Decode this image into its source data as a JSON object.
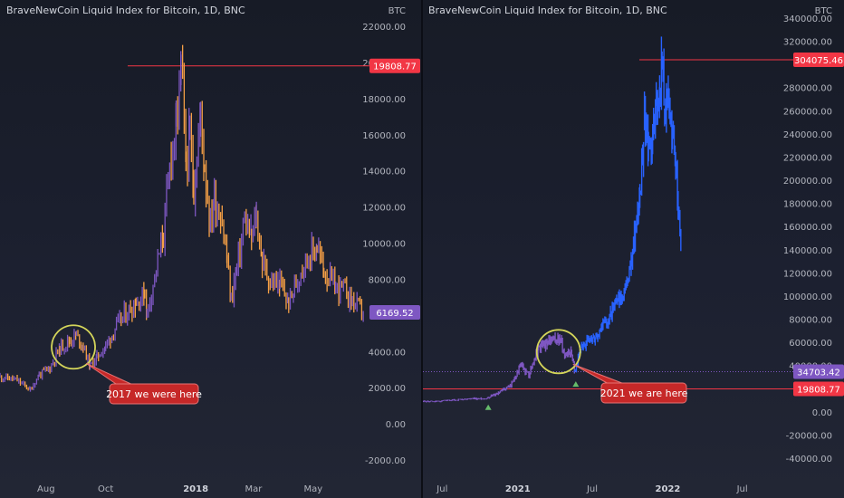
{
  "chart_data": [
    {
      "type": "candlestick",
      "title": "BraveNewCoin Liquid Index for Bitcoin, 1D, BNC",
      "ylabel": "BTC",
      "ylim": [
        -2000,
        22000
      ],
      "yticks": [
        22000,
        20000,
        18000,
        16000,
        14000,
        12000,
        10000,
        8000,
        6000,
        4000,
        2000,
        0,
        -2000
      ],
      "ytick_labels": [
        "22000.00",
        "20000.00",
        "18000.00",
        "16000.00",
        "14000.00",
        "12000.00",
        "10000.00",
        "8000.00",
        "",
        "4000.00",
        "2000.00",
        "0.00",
        "-2000.00"
      ],
      "xlim": [
        "2017-06-15",
        "2018-06-22"
      ],
      "xticks": [
        {
          "date": "2017-08-01",
          "label": "Aug"
        },
        {
          "date": "2017-10-01",
          "label": "Oct"
        },
        {
          "date": "2018-01-01",
          "label": "2018"
        },
        {
          "date": "2018-03-01",
          "label": "Mar"
        },
        {
          "date": "2018-05-01",
          "label": "May"
        }
      ],
      "series": [
        {
          "points": [
            [
              "2017-06-15",
              2600
            ],
            [
              "2017-07-01",
              2450
            ],
            [
              "2017-07-16",
              1900
            ],
            [
              "2017-07-25",
              2700
            ],
            [
              "2017-08-05",
              3100
            ],
            [
              "2017-08-15",
              4200
            ],
            [
              "2017-08-25",
              4600
            ],
            [
              "2017-09-01",
              4900
            ],
            [
              "2017-09-08",
              4300
            ],
            [
              "2017-09-15",
              3200
            ],
            [
              "2017-09-22",
              3700
            ],
            [
              "2017-10-01",
              4300
            ],
            [
              "2017-10-12",
              5400
            ],
            [
              "2017-10-20",
              6000
            ],
            [
              "2017-11-01",
              6700
            ],
            [
              "2017-11-10",
              7200
            ],
            [
              "2017-11-12",
              6100
            ],
            [
              "2017-11-20",
              8100
            ],
            [
              "2017-11-29",
              10500
            ],
            [
              "2017-12-07",
              15000
            ],
            [
              "2017-12-12",
              16500
            ],
            [
              "2017-12-17",
              19800
            ],
            [
              "2017-12-22",
              14500
            ],
            [
              "2017-12-26",
              15800
            ],
            [
              "2017-12-30",
              13200
            ],
            [
              "2018-01-06",
              17000
            ],
            [
              "2018-01-10",
              14300
            ],
            [
              "2018-01-16",
              11000
            ],
            [
              "2018-01-20",
              12500
            ],
            [
              "2018-01-28",
              11300
            ],
            [
              "2018-02-02",
              9000
            ],
            [
              "2018-02-06",
              6900
            ],
            [
              "2018-02-12",
              8600
            ],
            [
              "2018-02-20",
              11200
            ],
            [
              "2018-02-27",
              10300
            ],
            [
              "2018-03-04",
              11400
            ],
            [
              "2018-03-10",
              9000
            ],
            [
              "2018-03-18",
              7800
            ],
            [
              "2018-03-28",
              7700
            ],
            [
              "2018-04-06",
              6700
            ],
            [
              "2018-04-12",
              7500
            ],
            [
              "2018-04-20",
              8800
            ],
            [
              "2018-04-28",
              9300
            ],
            [
              "2018-05-05",
              9800
            ],
            [
              "2018-05-12",
              8500
            ],
            [
              "2018-05-24",
              7500
            ],
            [
              "2018-06-01",
              7500
            ],
            [
              "2018-06-10",
              6800
            ],
            [
              "2018-06-22",
              6170
            ]
          ]
        }
      ],
      "horizontal_lines": [
        {
          "value": 19808.77,
          "label": "19808.77",
          "color": "#f23645"
        }
      ],
      "price_labels": [
        {
          "value": 6169.52,
          "label": "6169.52",
          "color": "#7e57c2"
        }
      ],
      "annotations": [
        {
          "text": "2017 we were here",
          "circle_at": [
            "2017-08-29",
            4250
          ]
        }
      ],
      "colors": {
        "up": "#7e57c2",
        "down": "#f6a046"
      }
    },
    {
      "type": "candlestick",
      "title": "BraveNewCoin Liquid Index for Bitcoin, 1D, BNC",
      "ylabel": "BTC",
      "ylim": [
        -40000,
        340000
      ],
      "yticks": [
        340000,
        320000,
        300000,
        280000,
        260000,
        240000,
        220000,
        200000,
        180000,
        160000,
        140000,
        120000,
        100000,
        80000,
        60000,
        40000,
        20000,
        0,
        -20000,
        -40000
      ],
      "ytick_labels": [
        "340000.00",
        "320000.00",
        "",
        "280000.00",
        "260000.00",
        "240000.00",
        "220000.00",
        "200000.00",
        "180000.00",
        "160000.00",
        "140000.00",
        "120000.00",
        "100000.00",
        "80000.00",
        "60000.00",
        "40000.00",
        "",
        "0.00",
        "-20000.00",
        "-40000.00"
      ],
      "xlim": [
        "2020-05-15",
        "2022-10-20"
      ],
      "xticks": [
        {
          "date": "2020-07-01",
          "label": "Jul"
        },
        {
          "date": "2021-01-01",
          "label": "2021"
        },
        {
          "date": "2021-07-01",
          "label": "Jul"
        },
        {
          "date": "2022-01-01",
          "label": "2022"
        },
        {
          "date": "2022-07-01",
          "label": "Jul"
        }
      ],
      "series": [
        {
          "name_hidden": "actual",
          "points": [
            [
              "2020-05-15",
              9000
            ],
            [
              "2020-07-01",
              9200
            ],
            [
              "2020-09-01",
              11000
            ],
            [
              "2020-10-15",
              11500
            ],
            [
              "2020-11-15",
              16500
            ],
            [
              "2020-12-15",
              23000
            ],
            [
              "2021-01-08",
              40000
            ],
            [
              "2021-01-28",
              32000
            ],
            [
              "2021-02-20",
              55000
            ],
            [
              "2021-03-13",
              60000
            ],
            [
              "2021-04-13",
              63000
            ],
            [
              "2021-04-25",
              50000
            ],
            [
              "2021-05-12",
              52000
            ],
            [
              "2021-05-19",
              34703
            ]
          ]
        },
        {
          "name_hidden": "projection",
          "points": [
            [
              "2021-05-19",
              34703
            ],
            [
              "2021-06-05",
              56000
            ],
            [
              "2021-06-25",
              62000
            ],
            [
              "2021-07-10",
              65000
            ],
            [
              "2021-07-25",
              75000
            ],
            [
              "2021-08-10",
              80000
            ],
            [
              "2021-08-25",
              92000
            ],
            [
              "2021-09-10",
              98000
            ],
            [
              "2021-09-25",
              110000
            ],
            [
              "2021-10-05",
              135000
            ],
            [
              "2021-10-15",
              160000
            ],
            [
              "2021-10-25",
              185000
            ],
            [
              "2021-11-05",
              255000
            ],
            [
              "2021-11-15",
              222000
            ],
            [
              "2021-11-25",
              238000
            ],
            [
              "2021-12-05",
              265000
            ],
            [
              "2021-12-12",
              280000
            ],
            [
              "2021-12-18",
              304075
            ],
            [
              "2021-12-24",
              260000
            ],
            [
              "2022-01-02",
              278000
            ],
            [
              "2022-01-12",
              235000
            ],
            [
              "2022-01-20",
              215000
            ],
            [
              "2022-01-26",
              185000
            ],
            [
              "2022-02-03",
              130000
            ]
          ]
        }
      ],
      "horizontal_lines": [
        {
          "value": 304075.46,
          "label": "304075.46",
          "color": "#f23645"
        },
        {
          "value": 19808.77,
          "label": "19808.77",
          "color": "#f23645"
        }
      ],
      "price_labels": [
        {
          "value": 34703.42,
          "label": "34703.42",
          "color": "#7e57c2"
        }
      ],
      "annotations": [
        {
          "text": "2021 we are here",
          "circle_at": [
            "2021-04-10",
            52000
          ]
        }
      ],
      "markers": [
        {
          "date": "2020-10-21",
          "value": 4000
        },
        {
          "date": "2021-05-22",
          "value": 24000
        }
      ],
      "colors": {
        "actual": "#7e57c2",
        "projection": "#2962ff"
      }
    }
  ]
}
